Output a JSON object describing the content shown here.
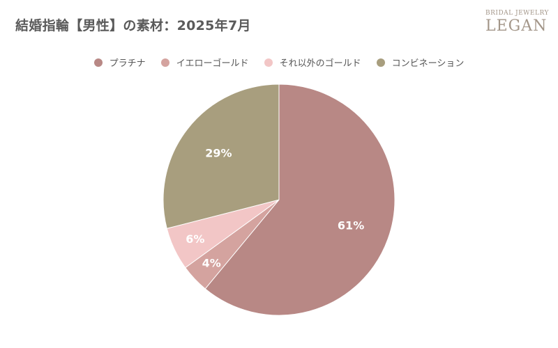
{
  "chart_data": {
    "type": "pie",
    "title": "結婚指輪【男性】の素材：2025年7月",
    "categories": [
      "プラチナ",
      "イエローゴールド",
      "それ以外のゴールド",
      "コンビネーション"
    ],
    "values": [
      61,
      4,
      6,
      29
    ],
    "value_labels": [
      "61%",
      "4%",
      "6%",
      "29%"
    ],
    "colors": [
      "#b88885",
      "#d4a39f",
      "#f2c6c6",
      "#a89e7e"
    ],
    "start_angle_deg": 0,
    "direction": "clockwise",
    "legend_position": "top"
  },
  "brand": {
    "tagline": "BRIDAL JEWELRY",
    "name": "LEGAN"
  }
}
